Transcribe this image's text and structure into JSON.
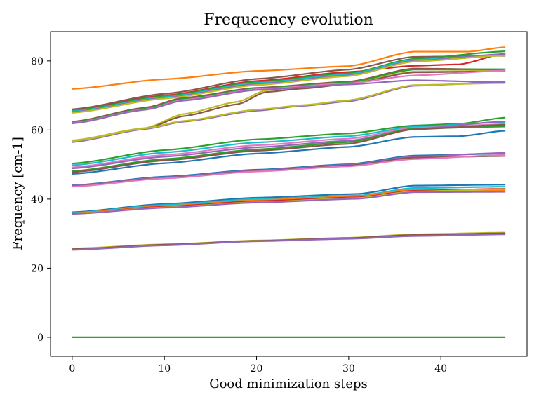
{
  "chart_data": {
    "type": "line",
    "title": "Frequcency evolution",
    "xlabel": "Good minimization steps",
    "ylabel": "Frequency [cm-1]",
    "xlim": [
      -2.35,
      49.35
    ],
    "ylim": [
      -5.5,
      88.5
    ],
    "xticks": [
      "0",
      "10",
      "20",
      "30",
      "40"
    ],
    "yticks": [
      "0",
      "20",
      "40",
      "60",
      "80"
    ],
    "grid": false,
    "legend": "none",
    "x_range": [
      0,
      47
    ],
    "series": [
      {
        "color": "#2ca02c",
        "points": [
          [
            0,
            0
          ],
          [
            47,
            0
          ]
        ]
      },
      {
        "color": "#bcbd22",
        "points": [
          [
            0,
            25.7
          ],
          [
            10,
            26.9
          ],
          [
            20,
            28.0
          ],
          [
            30,
            28.8
          ],
          [
            37,
            29.8
          ],
          [
            47,
            30.3
          ]
        ]
      },
      {
        "color": "#8c564b",
        "points": [
          [
            0,
            25.5
          ],
          [
            10,
            26.8
          ],
          [
            20,
            27.9
          ],
          [
            30,
            28.7
          ],
          [
            37,
            29.6
          ],
          [
            47,
            30.1
          ]
        ]
      },
      {
        "color": "#9467bd",
        "points": [
          [
            0,
            25.3
          ],
          [
            10,
            26.6
          ],
          [
            20,
            27.8
          ],
          [
            30,
            28.5
          ],
          [
            37,
            29.3
          ],
          [
            47,
            29.8
          ]
        ]
      },
      {
        "color": "#1f77b4",
        "points": [
          [
            0,
            36.2
          ],
          [
            10,
            38.6
          ],
          [
            20,
            40.4
          ],
          [
            31,
            41.5
          ],
          [
            37,
            43.9
          ],
          [
            47,
            44.2
          ]
        ]
      },
      {
        "color": "#17becf",
        "points": [
          [
            0,
            36.0
          ],
          [
            10,
            38.3
          ],
          [
            20,
            40.0
          ],
          [
            31,
            41.0
          ],
          [
            37,
            43.2
          ],
          [
            47,
            43.6
          ]
        ]
      },
      {
        "color": "#ff7f0e",
        "points": [
          [
            0,
            35.9
          ],
          [
            10,
            38.0
          ],
          [
            20,
            39.7
          ],
          [
            31,
            40.8
          ],
          [
            37,
            42.8
          ],
          [
            47,
            42.6
          ]
        ]
      },
      {
        "color": "#d62728",
        "points": [
          [
            0,
            35.8
          ],
          [
            10,
            37.8
          ],
          [
            20,
            39.4
          ],
          [
            31,
            40.5
          ],
          [
            37,
            42.4
          ],
          [
            47,
            43.0
          ]
        ]
      },
      {
        "color": "#bcbd22",
        "points": [
          [
            0,
            35.8
          ],
          [
            10,
            37.6
          ],
          [
            20,
            39.1
          ],
          [
            31,
            40.3
          ],
          [
            37,
            42.2
          ],
          [
            47,
            42.9
          ]
        ]
      },
      {
        "color": "#9467bd",
        "points": [
          [
            0,
            35.7
          ],
          [
            10,
            37.5
          ],
          [
            20,
            39.0
          ],
          [
            31,
            40.1
          ],
          [
            37,
            42.0
          ],
          [
            47,
            42.1
          ]
        ]
      },
      {
        "color": "#1f77b4",
        "points": [
          [
            0,
            44.0
          ],
          [
            10,
            46.5
          ],
          [
            20,
            48.5
          ],
          [
            30,
            50.1
          ],
          [
            37,
            52.6
          ],
          [
            47,
            53.2
          ]
        ]
      },
      {
        "color": "#9467bd",
        "points": [
          [
            0,
            43.9
          ],
          [
            10,
            46.3
          ],
          [
            20,
            48.3
          ],
          [
            30,
            49.9
          ],
          [
            37,
            52.3
          ],
          [
            47,
            53.4
          ]
        ]
      },
      {
        "color": "#8c564b",
        "points": [
          [
            0,
            43.7
          ],
          [
            10,
            46.1
          ],
          [
            20,
            48.1
          ],
          [
            30,
            49.7
          ],
          [
            37,
            52.0
          ],
          [
            47,
            52.5
          ]
        ]
      },
      {
        "color": "#e377c2",
        "points": [
          [
            0,
            43.6
          ],
          [
            10,
            46.0
          ],
          [
            20,
            48.0
          ],
          [
            30,
            49.5
          ],
          [
            37,
            51.6
          ],
          [
            47,
            52.8
          ]
        ]
      },
      {
        "color": "#2ca02c",
        "points": [
          [
            0,
            50.3
          ],
          [
            10,
            54.2
          ],
          [
            20,
            57.3
          ],
          [
            30,
            59.0
          ],
          [
            37,
            61.3
          ],
          [
            42,
            61.8
          ],
          [
            47,
            63.6
          ]
        ]
      },
      {
        "color": "#17becf",
        "points": [
          [
            0,
            49.8
          ],
          [
            10,
            53.5
          ],
          [
            20,
            56.4
          ],
          [
            30,
            58.2
          ],
          [
            37,
            60.9
          ],
          [
            47,
            62.3
          ]
        ]
      },
      {
        "color": "#e377c2",
        "points": [
          [
            0,
            49.2
          ],
          [
            10,
            52.8
          ],
          [
            20,
            55.6
          ],
          [
            30,
            57.5
          ],
          [
            37,
            60.6
          ],
          [
            47,
            61.7
          ]
        ]
      },
      {
        "color": "#9467bd",
        "points": [
          [
            0,
            48.9
          ],
          [
            10,
            52.3
          ],
          [
            20,
            55.0
          ],
          [
            30,
            56.9
          ],
          [
            37,
            60.3
          ],
          [
            47,
            62.5
          ]
        ]
      },
      {
        "color": "#2ca02c",
        "points": [
          [
            0,
            48.1
          ],
          [
            10,
            51.6
          ],
          [
            20,
            54.4
          ],
          [
            30,
            56.5
          ],
          [
            37,
            60.4
          ],
          [
            47,
            61.0
          ]
        ]
      },
      {
        "color": "#8c564b",
        "points": [
          [
            0,
            47.8
          ],
          [
            10,
            51.2
          ],
          [
            20,
            54.0
          ],
          [
            30,
            56.0
          ],
          [
            37,
            60.2
          ],
          [
            47,
            61.5
          ]
        ]
      },
      {
        "color": "#1f77b4",
        "points": [
          [
            0,
            47.3
          ],
          [
            10,
            50.4
          ],
          [
            20,
            53.2
          ],
          [
            30,
            55.1
          ],
          [
            37,
            58.0
          ],
          [
            42,
            58.2
          ],
          [
            47,
            59.8
          ]
        ]
      },
      {
        "color": "#bcbd22",
        "points": [
          [
            0,
            57.0
          ],
          [
            8,
            60.6
          ],
          [
            12,
            64.6
          ],
          [
            18,
            68.2
          ],
          [
            21,
            71.5
          ],
          [
            25,
            72.5
          ],
          [
            30,
            73.5
          ],
          [
            37,
            76.9
          ],
          [
            47,
            77.2
          ]
        ]
      },
      {
        "color": "#8c564b",
        "points": [
          [
            0,
            56.7
          ],
          [
            8,
            60.4
          ],
          [
            12,
            64.0
          ],
          [
            18,
            67.5
          ],
          [
            21,
            71.0
          ],
          [
            25,
            72.0
          ],
          [
            30,
            73.3
          ],
          [
            37,
            76.7
          ],
          [
            47,
            77.0
          ]
        ]
      },
      {
        "color": "#9467bd",
        "points": [
          [
            0,
            56.5
          ],
          [
            8,
            60.3
          ],
          [
            12,
            62.4
          ],
          [
            20,
            65.6
          ],
          [
            25,
            67.0
          ],
          [
            30,
            68.3
          ],
          [
            37,
            72.8
          ],
          [
            47,
            73.9
          ]
        ]
      },
      {
        "color": "#bcbd22",
        "points": [
          [
            0,
            56.8
          ],
          [
            8,
            60.5
          ],
          [
            12,
            62.6
          ],
          [
            20,
            65.9
          ],
          [
            25,
            67.2
          ],
          [
            30,
            68.6
          ],
          [
            37,
            73.0
          ],
          [
            47,
            73.6
          ]
        ]
      },
      {
        "color": "#8c564b",
        "points": [
          [
            0,
            62.4
          ],
          [
            8,
            66.5
          ],
          [
            12,
            69.3
          ],
          [
            20,
            72.2
          ],
          [
            30,
            74.0
          ],
          [
            37,
            77.8
          ],
          [
            47,
            77.5
          ]
        ]
      },
      {
        "color": "#2ca02c",
        "points": [
          [
            0,
            62.2
          ],
          [
            8,
            66.2
          ],
          [
            12,
            69.0
          ],
          [
            20,
            72.0
          ],
          [
            30,
            73.8
          ],
          [
            37,
            77.5
          ],
          [
            47,
            77.6
          ]
        ]
      },
      {
        "color": "#e377c2",
        "points": [
          [
            0,
            62.0
          ],
          [
            8,
            66.0
          ],
          [
            12,
            68.7
          ],
          [
            20,
            71.8
          ],
          [
            30,
            73.5
          ],
          [
            37,
            75.8
          ],
          [
            47,
            77.2
          ]
        ]
      },
      {
        "color": "#9467bd",
        "points": [
          [
            0,
            61.9
          ],
          [
            8,
            65.9
          ],
          [
            12,
            68.5
          ],
          [
            20,
            71.6
          ],
          [
            30,
            73.2
          ],
          [
            37,
            74.4
          ],
          [
            47,
            73.8
          ]
        ]
      },
      {
        "color": "#ff7f0e",
        "points": [
          [
            0,
            71.9
          ],
          [
            10,
            74.7
          ],
          [
            20,
            77.1
          ],
          [
            30,
            78.5
          ],
          [
            37,
            82.7
          ],
          [
            43,
            82.7
          ],
          [
            47,
            84.0
          ]
        ]
      },
      {
        "color": "#d62728",
        "points": [
          [
            0,
            65.8
          ],
          [
            10,
            70.0
          ],
          [
            20,
            74.2
          ],
          [
            30,
            76.8
          ],
          [
            37,
            78.6
          ],
          [
            42,
            79.0
          ],
          [
            47,
            82.2
          ]
        ]
      },
      {
        "color": "#8c564b",
        "points": [
          [
            0,
            66.0
          ],
          [
            10,
            70.5
          ],
          [
            20,
            74.8
          ],
          [
            30,
            77.5
          ],
          [
            37,
            81.2
          ],
          [
            47,
            81.5
          ]
        ]
      },
      {
        "color": "#2ca02c",
        "points": [
          [
            0,
            65.6
          ],
          [
            10,
            69.8
          ],
          [
            20,
            73.9
          ],
          [
            30,
            76.4
          ],
          [
            37,
            80.6
          ],
          [
            47,
            82.8
          ]
        ]
      },
      {
        "color": "#17becf",
        "points": [
          [
            0,
            65.4
          ],
          [
            10,
            69.5
          ],
          [
            20,
            73.6
          ],
          [
            30,
            76.1
          ],
          [
            37,
            80.3
          ],
          [
            47,
            81.9
          ]
        ]
      },
      {
        "color": "#9467bd",
        "points": [
          [
            0,
            65.2
          ],
          [
            10,
            69.3
          ],
          [
            20,
            73.3
          ],
          [
            30,
            75.8
          ],
          [
            37,
            80.0
          ],
          [
            47,
            82.0
          ]
        ]
      },
      {
        "color": "#bcbd22",
        "points": [
          [
            0,
            65.0
          ],
          [
            10,
            69.1
          ],
          [
            20,
            73.0
          ],
          [
            30,
            75.6
          ],
          [
            37,
            79.8
          ],
          [
            47,
            81.6
          ]
        ]
      }
    ]
  }
}
